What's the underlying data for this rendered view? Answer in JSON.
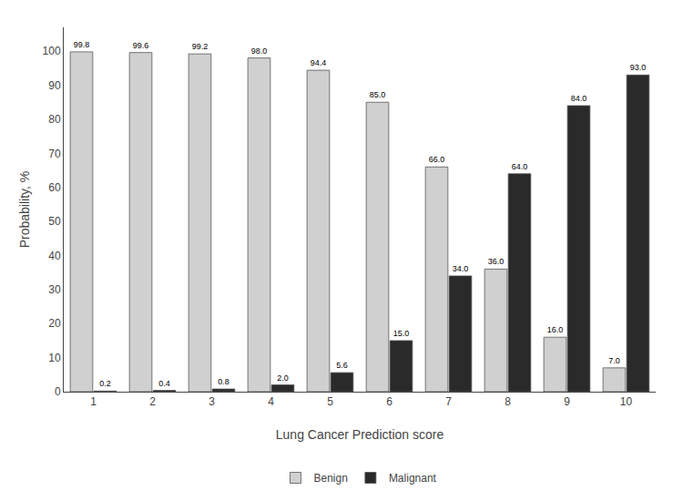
{
  "chart_data": {
    "type": "bar",
    "xlabel": "Lung Cancer Prediction score",
    "ylabel": "Probability, %",
    "categories": [
      1,
      2,
      3,
      4,
      5,
      6,
      7,
      8,
      9,
      10
    ],
    "series": [
      {
        "name": "Benign",
        "color": "#d0d0d0",
        "values": [
          99.8,
          99.6,
          99.2,
          98.0,
          94.4,
          85.0,
          66.0,
          36.0,
          16.0,
          7.0
        ],
        "value_labels": [
          "99.8",
          "99.6",
          "99.2",
          "98.0",
          "94.4",
          "85.0",
          "66.0",
          "36.0",
          "16.0",
          "7.0"
        ]
      },
      {
        "name": "Malignant",
        "color": "#2a2a2a",
        "values": [
          0.2,
          0.4,
          0.8,
          2.0,
          5.6,
          15.0,
          34.0,
          64.0,
          84.0,
          93.0
        ],
        "value_labels": [
          "0.2",
          "0.4",
          "0.8",
          "2.0",
          "5.6",
          "15.0",
          "34.0",
          "64.0",
          "84.0",
          "93.0"
        ]
      }
    ],
    "ylim": [
      0,
      107
    ],
    "yticks": [
      0,
      10,
      20,
      30,
      40,
      50,
      60,
      70,
      80,
      90,
      100
    ],
    "data_labels": true,
    "grid": false,
    "legend": "bottom"
  }
}
